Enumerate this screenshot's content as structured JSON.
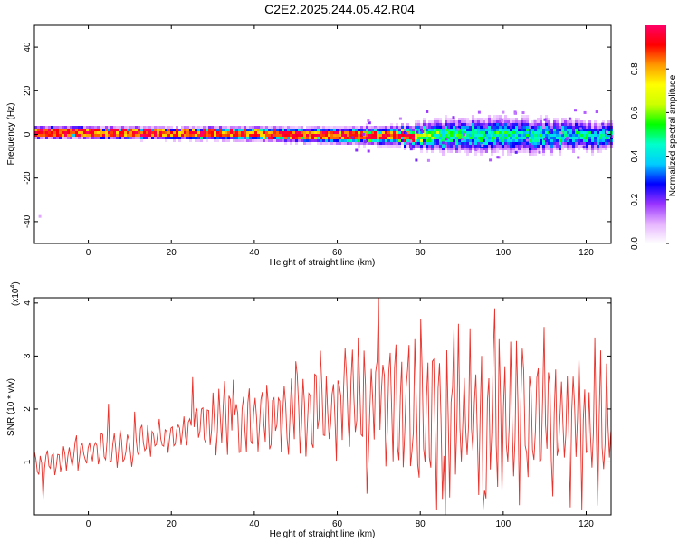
{
  "title": "C2E2.2025.244.05.42.R04",
  "chart_data": [
    {
      "type": "heatmap",
      "xlabel": "Height of straight line (km)",
      "ylabel": "Frequency (Hz)",
      "xlim": [
        -13,
        126
      ],
      "ylim": [
        -50,
        50
      ],
      "xticks": [
        0,
        20,
        40,
        60,
        80,
        100,
        120
      ],
      "yticks": [
        40,
        20,
        0,
        -20,
        -40
      ],
      "colorbar": {
        "label": "Normalized spectral amplitude",
        "ticks": [
          "0.0",
          "0.2",
          "0.4",
          "0.6",
          "0.8"
        ],
        "range": [
          0,
          1
        ],
        "colors": [
          "#ffffff",
          "#e6b3ff",
          "#9933ff",
          "#0000ff",
          "#00ccff",
          "#00ffcc",
          "#00ff00",
          "#ccff00",
          "#ffff00",
          "#ff9900",
          "#ff0000",
          "#ff0066"
        ]
      },
      "band_profile": [
        {
          "x": -13,
          "center": 1.5,
          "halfwidth": 3,
          "peak": 0.95
        },
        {
          "x": 0,
          "center": 1.5,
          "halfwidth": 3,
          "peak": 0.95
        },
        {
          "x": 20,
          "center": 1,
          "halfwidth": 3,
          "peak": 0.9
        },
        {
          "x": 40,
          "center": 1,
          "halfwidth": 3.5,
          "peak": 0.85
        },
        {
          "x": 60,
          "center": 0,
          "halfwidth": 4,
          "peak": 0.9
        },
        {
          "x": 75,
          "center": 0,
          "halfwidth": 5,
          "peak": 0.8
        },
        {
          "x": 85,
          "center": 0,
          "halfwidth": 8,
          "peak": 0.6
        },
        {
          "x": 100,
          "center": 0,
          "halfwidth": 9,
          "peak": 0.55
        },
        {
          "x": 126,
          "center": 0,
          "halfwidth": 7,
          "peak": 0.5
        }
      ]
    },
    {
      "type": "line",
      "xlabel": "Height of straight line (km)",
      "ylabel": "SNR (10 * v/v)",
      "y_multiplier": "(x10",
      "y_multiplier_exp": "4",
      "y_multiplier_close": ")",
      "xlim": [
        -13,
        126
      ],
      "ylim": [
        0,
        4.1
      ],
      "xticks": [
        0,
        20,
        40,
        60,
        80,
        100,
        120
      ],
      "yticks": [
        1,
        2,
        3,
        4
      ],
      "color": "#e8322b",
      "envelope": [
        {
          "x": -13,
          "center": 0.9,
          "amp": 0.3
        },
        {
          "x": 0,
          "center": 1.2,
          "amp": 0.3
        },
        {
          "x": 10,
          "center": 1.3,
          "amp": 0.35
        },
        {
          "x": 20,
          "center": 1.5,
          "amp": 0.3
        },
        {
          "x": 30,
          "center": 1.8,
          "amp": 0.6
        },
        {
          "x": 40,
          "center": 1.9,
          "amp": 0.7
        },
        {
          "x": 50,
          "center": 1.9,
          "amp": 0.8
        },
        {
          "x": 60,
          "center": 2.0,
          "amp": 0.9
        },
        {
          "x": 70,
          "center": 2.1,
          "amp": 1.2
        },
        {
          "x": 80,
          "center": 2.0,
          "amp": 1.5
        },
        {
          "x": 90,
          "center": 1.9,
          "amp": 1.5
        },
        {
          "x": 100,
          "center": 1.8,
          "amp": 1.5
        },
        {
          "x": 110,
          "center": 1.8,
          "amp": 1.4
        },
        {
          "x": 126,
          "center": 1.7,
          "amp": 1.3
        }
      ],
      "peaks": [
        {
          "x": -3,
          "y": 1.5
        },
        {
          "x": 5,
          "y": 2.1
        },
        {
          "x": 11,
          "y": 1.95
        },
        {
          "x": 25,
          "y": 2.6
        },
        {
          "x": 35,
          "y": 2.55
        },
        {
          "x": 50,
          "y": 2.9
        },
        {
          "x": 56,
          "y": 3.1
        },
        {
          "x": 65,
          "y": 3.35
        },
        {
          "x": 70,
          "y": 4.1
        },
        {
          "x": 80,
          "y": 3.7
        },
        {
          "x": 88,
          "y": 3.55
        },
        {
          "x": 98,
          "y": 3.9
        },
        {
          "x": 110,
          "y": 3.55
        },
        {
          "x": 122,
          "y": 3.35
        }
      ],
      "troughs": [
        {
          "x": -11,
          "y": 0.3
        },
        {
          "x": 67,
          "y": 0.4
        },
        {
          "x": 84,
          "y": 0.1
        },
        {
          "x": 86,
          "y": 0.0
        },
        {
          "x": 95,
          "y": 0.1
        },
        {
          "x": 119,
          "y": 0.1
        }
      ]
    }
  ]
}
